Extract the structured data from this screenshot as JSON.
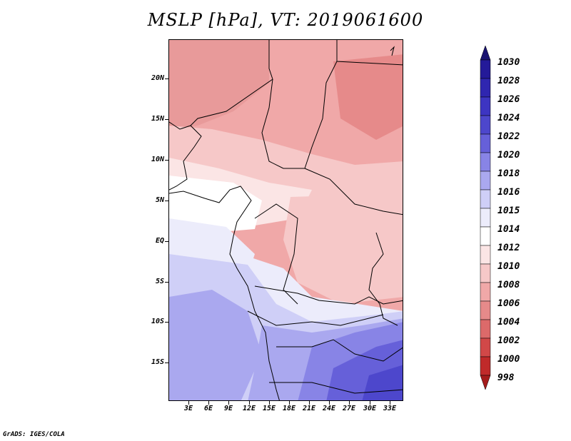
{
  "title": "MSLP [hPa], VT: 2019061600",
  "credit": "GrADS: IGES/COLA",
  "axes": {
    "y_labels": [
      "20N",
      "15N",
      "10N",
      "5N",
      "EQ",
      "5S",
      "10S",
      "15S"
    ],
    "x_labels": [
      "3E",
      "6E",
      "9E",
      "12E",
      "15E",
      "18E",
      "21E",
      "24E",
      "27E",
      "30E",
      "33E"
    ]
  },
  "colorbar": {
    "labels": [
      "1030",
      "1028",
      "1026",
      "1024",
      "1022",
      "1020",
      "1018",
      "1016",
      "1015",
      "1014",
      "1012",
      "1010",
      "1008",
      "1006",
      "1004",
      "1002",
      "1000",
      "998"
    ],
    "colors": [
      "#1a1370",
      "#241a99",
      "#2f26b0",
      "#3d35c2",
      "#4d47cc",
      "#6660d9",
      "#8884e6",
      "#aaa8ef",
      "#cfcff7",
      "#ececfb",
      "#ffffff",
      "#fbe5e5",
      "#f6c8c8",
      "#f0a8a8",
      "#e68a8a",
      "#dc6a6a",
      "#d14848",
      "#c02a2a",
      "#a51c1c"
    ]
  },
  "map": {
    "regions": [
      {
        "name": "north-band",
        "color": "#f0a8a8"
      },
      {
        "name": "northwest",
        "color": "#e89a9a"
      },
      {
        "name": "sahel",
        "color": "#f6c8c8"
      },
      {
        "name": "guinea-coast",
        "color": "#fbe5e5"
      },
      {
        "name": "congo-basin",
        "color": "#f6c8c8"
      },
      {
        "name": "atlantic-equator",
        "color": "#ffffff"
      },
      {
        "name": "gulf-guinea",
        "color": "#ececfb"
      },
      {
        "name": "south-atlantic",
        "color": "#cfcff7"
      },
      {
        "name": "southern-africa",
        "color": "#aaa8ef"
      },
      {
        "name": "southeast",
        "color": "#6660d9"
      }
    ]
  }
}
